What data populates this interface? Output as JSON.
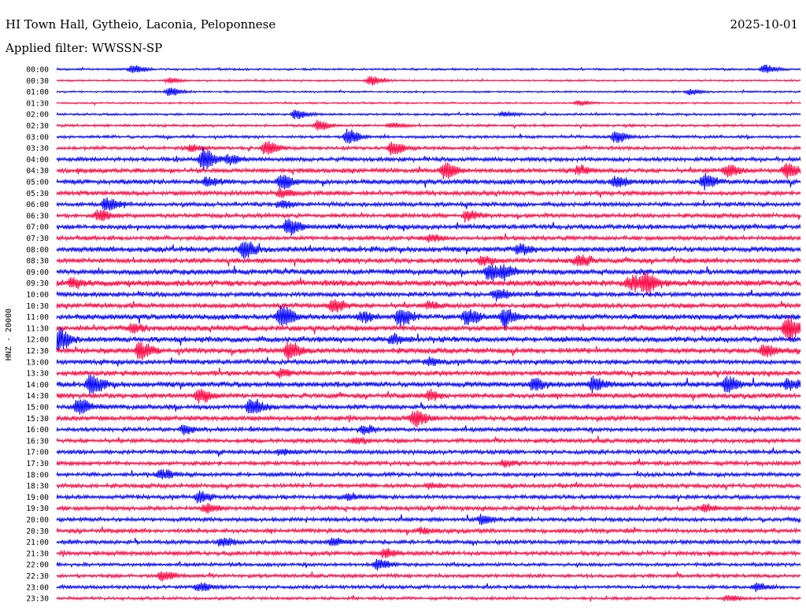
{
  "header": {
    "station": "HI Town Hall, Gytheio, Laconia, Peloponnese",
    "date": "2025-10-01",
    "filter": "Applied filter: WWSSN-SP"
  },
  "chart_data": {
    "type": "line",
    "ylabel": "HNZ - 20000",
    "colors": {
      "even": "#0000ff",
      "odd": "#ff0040"
    },
    "rows": [
      "00:00",
      "00:30",
      "01:00",
      "01:30",
      "02:00",
      "02:30",
      "03:00",
      "03:30",
      "04:00",
      "04:30",
      "05:00",
      "05:30",
      "06:00",
      "06:30",
      "07:00",
      "07:30",
      "08:00",
      "08:30",
      "09:00",
      "09:30",
      "10:00",
      "10:30",
      "11:00",
      "11:30",
      "12:00",
      "12:30",
      "13:00",
      "13:30",
      "14:00",
      "14:30",
      "15:00",
      "15:30",
      "16:00",
      "16:30",
      "17:00",
      "17:30",
      "18:00",
      "18:30",
      "19:00",
      "19:30",
      "20:00",
      "20:30",
      "21:00",
      "21:30",
      "22:00",
      "22:30",
      "23:00",
      "23:30"
    ],
    "noise": [
      1.5,
      1.2,
      1.3,
      1.2,
      1.6,
      1.8,
      2,
      2.4,
      3,
      3.2,
      3.5,
      3.2,
      3,
      3,
      3.5,
      3,
      4,
      3.5,
      4,
      4.5,
      3.5,
      3.5,
      4,
      4,
      4,
      4,
      3.5,
      3.5,
      4,
      3.5,
      3.5,
      3.5,
      3,
      3,
      3,
      3,
      3,
      3,
      3,
      3,
      3,
      3,
      3,
      3,
      2.5,
      2.5,
      2.5,
      2
    ],
    "events": [
      [
        [
          0.1,
          5
        ],
        [
          0.95,
          5
        ]
      ],
      [
        [
          0.42,
          6
        ],
        [
          0.15,
          3
        ]
      ],
      [
        [
          0.15,
          5
        ],
        [
          0.85,
          3
        ]
      ],
      [
        [
          0.7,
          3
        ]
      ],
      [
        [
          0.32,
          6
        ],
        [
          0.6,
          3
        ]
      ],
      [
        [
          0.35,
          6
        ],
        [
          0.45,
          3
        ]
      ],
      [
        [
          0.39,
          10
        ],
        [
          0.75,
          8
        ]
      ],
      [
        [
          0.28,
          9
        ],
        [
          0.45,
          8
        ],
        [
          0.18,
          4
        ]
      ],
      [
        [
          0.195,
          14
        ],
        [
          0.23,
          5
        ]
      ],
      [
        [
          0.52,
          10
        ],
        [
          0.7,
          5
        ],
        [
          0.9,
          8
        ],
        [
          0.98,
          10
        ]
      ],
      [
        [
          0.3,
          9
        ],
        [
          0.87,
          9
        ],
        [
          0.2,
          5
        ],
        [
          0.75,
          6
        ]
      ],
      [
        [
          0.3,
          5
        ]
      ],
      [
        [
          0.065,
          8
        ],
        [
          0.3,
          4
        ]
      ],
      [
        [
          0.055,
          6
        ],
        [
          0.55,
          5
        ]
      ],
      [
        [
          0.31,
          10
        ]
      ],
      [
        [
          0.5,
          4
        ]
      ],
      [
        [
          0.25,
          10
        ],
        [
          0.62,
          5
        ]
      ],
      [
        [
          0.7,
          8
        ],
        [
          0.57,
          5
        ]
      ],
      [
        [
          0.58,
          9
        ],
        [
          0.6,
          7
        ]
      ],
      [
        [
          0.79,
          13
        ],
        [
          0.02,
          5
        ],
        [
          0.77,
          7
        ]
      ],
      [
        [
          0.59,
          6
        ]
      ],
      [
        [
          0.37,
          8
        ],
        [
          0.5,
          4
        ]
      ],
      [
        [
          0.3,
          14
        ],
        [
          0.46,
          11
        ],
        [
          0.55,
          9
        ],
        [
          0.6,
          10
        ],
        [
          0.41,
          5
        ]
      ],
      [
        [
          0.98,
          14
        ],
        [
          0.1,
          4
        ]
      ],
      [
        [
          0.0,
          14
        ],
        [
          0.45,
          6
        ]
      ],
      [
        [
          0.11,
          10
        ],
        [
          0.31,
          12
        ],
        [
          0.95,
          7
        ]
      ],
      [
        [
          0.5,
          4
        ]
      ],
      [
        [
          0.3,
          4
        ]
      ],
      [
        [
          0.045,
          12
        ],
        [
          0.64,
          7
        ],
        [
          0.72,
          9
        ],
        [
          0.9,
          10
        ],
        [
          0.98,
          6
        ]
      ],
      [
        [
          0.19,
          8
        ],
        [
          0.5,
          5
        ]
      ],
      [
        [
          0.028,
          9
        ],
        [
          0.26,
          10
        ]
      ],
      [
        [
          0.48,
          10
        ]
      ],
      [
        [
          0.17,
          5
        ],
        [
          0.41,
          5
        ]
      ],
      [
        [
          0.4,
          4
        ]
      ],
      [
        [
          0.3,
          3
        ]
      ],
      [
        [
          0.6,
          3
        ]
      ],
      [
        [
          0.14,
          5
        ]
      ],
      [
        [
          0.5,
          3
        ]
      ],
      [
        [
          0.19,
          6
        ],
        [
          0.39,
          4
        ]
      ],
      [
        [
          0.2,
          5
        ],
        [
          0.87,
          4
        ]
      ],
      [
        [
          0.57,
          5
        ]
      ],
      [
        [
          0.49,
          3
        ]
      ],
      [
        [
          0.22,
          5
        ],
        [
          0.37,
          4
        ]
      ],
      [
        [
          0.44,
          5
        ]
      ],
      [
        [
          0.43,
          6
        ]
      ],
      [
        [
          0.14,
          6
        ]
      ],
      [
        [
          0.19,
          5
        ],
        [
          0.94,
          4
        ]
      ],
      [
        [
          0.9,
          3
        ]
      ]
    ]
  }
}
